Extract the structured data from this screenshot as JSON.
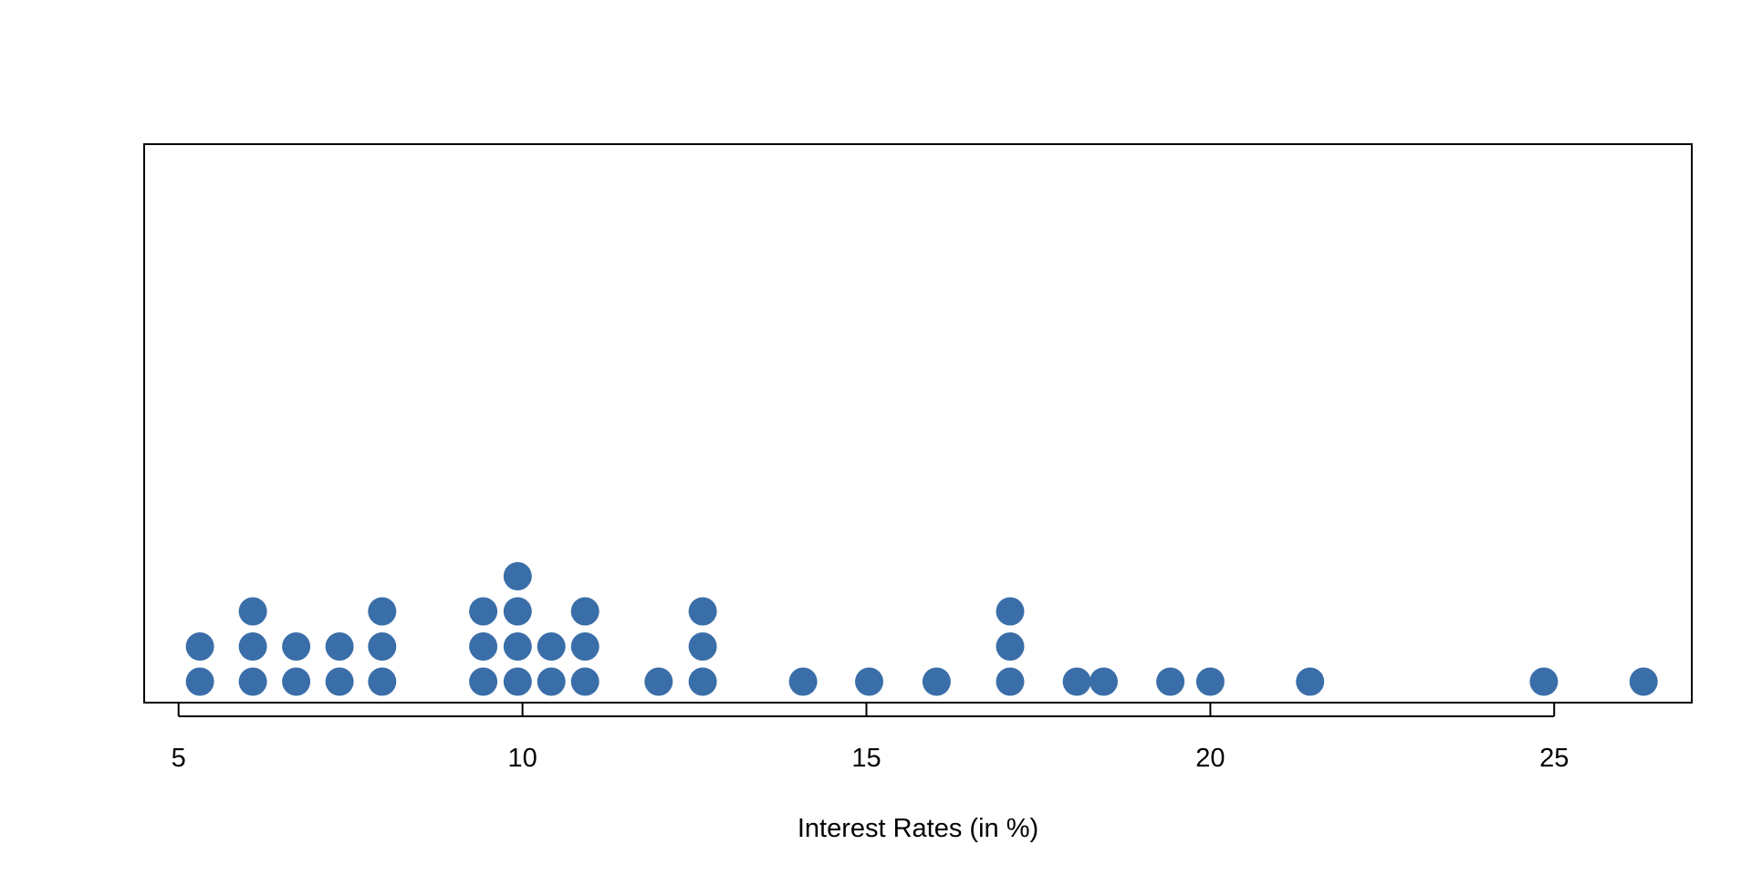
{
  "chart_data": {
    "type": "scatter",
    "subtype": "dot-plot",
    "title": "",
    "xlabel": "Interest Rates (in %)",
    "ylabel": "",
    "xlim": [
      4.5,
      27.0
    ],
    "xticks": [
      5,
      10,
      15,
      20,
      25
    ],
    "xtick_labels": [
      "5",
      "10",
      "15",
      "20",
      "25"
    ],
    "grid": false,
    "legend": "none",
    "marker_color": "#3A6EA8",
    "points": [
      {
        "x": 5.31,
        "count": 2
      },
      {
        "x": 6.08,
        "count": 3
      },
      {
        "x": 6.71,
        "count": 2
      },
      {
        "x": 7.34,
        "count": 2
      },
      {
        "x": 7.96,
        "count": 3
      },
      {
        "x": 9.43,
        "count": 3
      },
      {
        "x": 9.93,
        "count": 4
      },
      {
        "x": 10.42,
        "count": 2
      },
      {
        "x": 10.91,
        "count": 3
      },
      {
        "x": 11.98,
        "count": 1
      },
      {
        "x": 12.62,
        "count": 3
      },
      {
        "x": 14.08,
        "count": 1
      },
      {
        "x": 15.04,
        "count": 1
      },
      {
        "x": 16.02,
        "count": 1
      },
      {
        "x": 17.09,
        "count": 3
      },
      {
        "x": 18.06,
        "count": 1
      },
      {
        "x": 18.45,
        "count": 1
      },
      {
        "x": 19.42,
        "count": 1
      },
      {
        "x": 20.0,
        "count": 1
      },
      {
        "x": 21.45,
        "count": 1
      },
      {
        "x": 24.85,
        "count": 1
      },
      {
        "x": 26.3,
        "count": 1
      }
    ]
  }
}
